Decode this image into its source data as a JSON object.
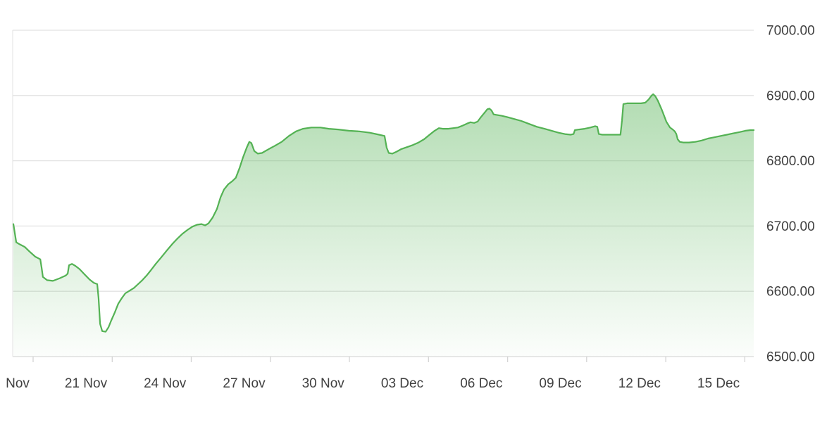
{
  "page": {
    "title": "",
    "background_color": "#ffffff"
  },
  "chart_data": {
    "type": "area",
    "title": "",
    "subtitle": "",
    "legend": "none",
    "grid": "horizontal-only",
    "x_axis_labels": [
      "Nov",
      "21 Nov",
      "24 Nov",
      "27 Nov",
      "30 Nov",
      "03 Dec",
      "06 Dec",
      "09 Dec",
      "12 Dec",
      "15 Dec"
    ],
    "x_label_interval_days": 3,
    "y_axis_labels": [
      "7000.00",
      "6900.00",
      "6800.00",
      "6700.00",
      "6600.00",
      "6500.00"
    ],
    "y_ticks": [
      7000,
      6900,
      6800,
      6700,
      6600,
      6500
    ],
    "ylim": [
      6500,
      7000
    ],
    "y_axis_side": "right",
    "x_unit": "days since first x label (Nov)",
    "colors": {
      "line": "#54b254",
      "fill_top": "rgba(84,178,84,0.45)",
      "fill_bottom": "rgba(84,178,84,0.02)",
      "grid_line": "#e2e2e2",
      "axis_line": "#d9d9d9",
      "tick": "#d4d4d4",
      "label_text": "#404040"
    },
    "series": [
      {
        "points_day_value": [
          [
            -0.16,
            6703
          ],
          [
            -0.05,
            6675
          ],
          [
            0.08,
            6672
          ],
          [
            0.27,
            6668
          ],
          [
            0.45,
            6661
          ],
          [
            0.67,
            6653
          ],
          [
            0.86,
            6649
          ],
          [
            0.91,
            6636
          ],
          [
            0.96,
            6622
          ],
          [
            1.12,
            6617
          ],
          [
            1.34,
            6616
          ],
          [
            1.6,
            6620
          ],
          [
            1.82,
            6624
          ],
          [
            1.9,
            6627
          ],
          [
            1.95,
            6640
          ],
          [
            2.06,
            6642
          ],
          [
            2.19,
            6639
          ],
          [
            2.35,
            6634
          ],
          [
            2.54,
            6626
          ],
          [
            2.73,
            6618
          ],
          [
            2.89,
            6613
          ],
          [
            3.02,
            6611
          ],
          [
            3.07,
            6590
          ],
          [
            3.13,
            6550
          ],
          [
            3.21,
            6539
          ],
          [
            3.34,
            6538
          ],
          [
            3.45,
            6545
          ],
          [
            3.55,
            6555
          ],
          [
            3.69,
            6568
          ],
          [
            3.82,
            6581
          ],
          [
            3.96,
            6590
          ],
          [
            4.09,
            6597
          ],
          [
            4.25,
            6601
          ],
          [
            4.41,
            6605
          ],
          [
            4.57,
            6611
          ],
          [
            4.73,
            6617
          ],
          [
            4.89,
            6624
          ],
          [
            5.05,
            6632
          ],
          [
            5.24,
            6642
          ],
          [
            5.45,
            6652
          ],
          [
            5.67,
            6663
          ],
          [
            5.88,
            6673
          ],
          [
            6.07,
            6681
          ],
          [
            6.25,
            6688
          ],
          [
            6.44,
            6694
          ],
          [
            6.63,
            6699
          ],
          [
            6.81,
            6702
          ],
          [
            6.98,
            6703
          ],
          [
            7.11,
            6701
          ],
          [
            7.24,
            6704
          ],
          [
            7.4,
            6713
          ],
          [
            7.56,
            6726
          ],
          [
            7.7,
            6744
          ],
          [
            7.83,
            6756
          ],
          [
            7.99,
            6764
          ],
          [
            8.15,
            6769
          ],
          [
            8.28,
            6774
          ],
          [
            8.42,
            6789
          ],
          [
            8.55,
            6805
          ],
          [
            8.69,
            6820
          ],
          [
            8.79,
            6829
          ],
          [
            8.87,
            6827
          ],
          [
            8.98,
            6815
          ],
          [
            9.11,
            6811
          ],
          [
            9.27,
            6812
          ],
          [
            9.49,
            6817
          ],
          [
            9.76,
            6823
          ],
          [
            10.02,
            6829
          ],
          [
            10.29,
            6838
          ],
          [
            10.56,
            6845
          ],
          [
            10.82,
            6849
          ],
          [
            11.14,
            6851
          ],
          [
            11.49,
            6851
          ],
          [
            11.81,
            6849
          ],
          [
            12.16,
            6848
          ],
          [
            12.56,
            6846
          ],
          [
            12.96,
            6845
          ],
          [
            13.36,
            6843
          ],
          [
            13.71,
            6840
          ],
          [
            13.92,
            6838
          ],
          [
            14,
            6820
          ],
          [
            14.08,
            6812
          ],
          [
            14.22,
            6811
          ],
          [
            14.38,
            6814
          ],
          [
            14.56,
            6818
          ],
          [
            14.78,
            6821
          ],
          [
            14.99,
            6824
          ],
          [
            15.21,
            6828
          ],
          [
            15.42,
            6833
          ],
          [
            15.63,
            6840
          ],
          [
            15.82,
            6846
          ],
          [
            15.98,
            6850
          ],
          [
            16.14,
            6849
          ],
          [
            16.33,
            6849
          ],
          [
            16.52,
            6850
          ],
          [
            16.7,
            6851
          ],
          [
            16.89,
            6854
          ],
          [
            17.05,
            6857
          ],
          [
            17.18,
            6859
          ],
          [
            17.32,
            6858
          ],
          [
            17.45,
            6860
          ],
          [
            17.58,
            6867
          ],
          [
            17.72,
            6874
          ],
          [
            17.82,
            6879
          ],
          [
            17.9,
            6880
          ],
          [
            17.98,
            6877
          ],
          [
            18.06,
            6871
          ],
          [
            18.2,
            6870
          ],
          [
            18.36,
            6869
          ],
          [
            18.57,
            6867
          ],
          [
            18.84,
            6864
          ],
          [
            19.11,
            6861
          ],
          [
            19.37,
            6857
          ],
          [
            19.7,
            6852
          ],
          [
            19.99,
            6849
          ],
          [
            20.26,
            6846
          ],
          [
            20.52,
            6843
          ],
          [
            20.76,
            6841
          ],
          [
            20.98,
            6840
          ],
          [
            21.09,
            6841
          ],
          [
            21.14,
            6847
          ],
          [
            21.3,
            6848
          ],
          [
            21.51,
            6849
          ],
          [
            21.73,
            6851
          ],
          [
            21.91,
            6853
          ],
          [
            21.99,
            6852
          ],
          [
            22.05,
            6841
          ],
          [
            22.18,
            6840
          ],
          [
            22.45,
            6840
          ],
          [
            22.71,
            6840
          ],
          [
            22.87,
            6840
          ],
          [
            22.93,
            6862
          ],
          [
            22.98,
            6887
          ],
          [
            23.12,
            6888
          ],
          [
            23.38,
            6888
          ],
          [
            23.65,
            6888
          ],
          [
            23.81,
            6889
          ],
          [
            23.94,
            6894
          ],
          [
            24.05,
            6900
          ],
          [
            24.11,
            6902
          ],
          [
            24.19,
            6899
          ],
          [
            24.29,
            6892
          ],
          [
            24.45,
            6877
          ],
          [
            24.61,
            6860
          ],
          [
            24.75,
            6851
          ],
          [
            24.85,
            6848
          ],
          [
            24.93,
            6845
          ],
          [
            24.99,
            6841
          ],
          [
            25.04,
            6833
          ],
          [
            25.12,
            6829
          ],
          [
            25.25,
            6828
          ],
          [
            25.47,
            6828
          ],
          [
            25.71,
            6829
          ],
          [
            25.95,
            6831
          ],
          [
            26.19,
            6834
          ],
          [
            26.43,
            6836
          ],
          [
            26.67,
            6838
          ],
          [
            26.91,
            6840
          ],
          [
            27.15,
            6842
          ],
          [
            27.39,
            6844
          ],
          [
            27.61,
            6846
          ],
          [
            27.8,
            6847
          ],
          [
            27.93,
            6847
          ]
        ]
      }
    ]
  }
}
